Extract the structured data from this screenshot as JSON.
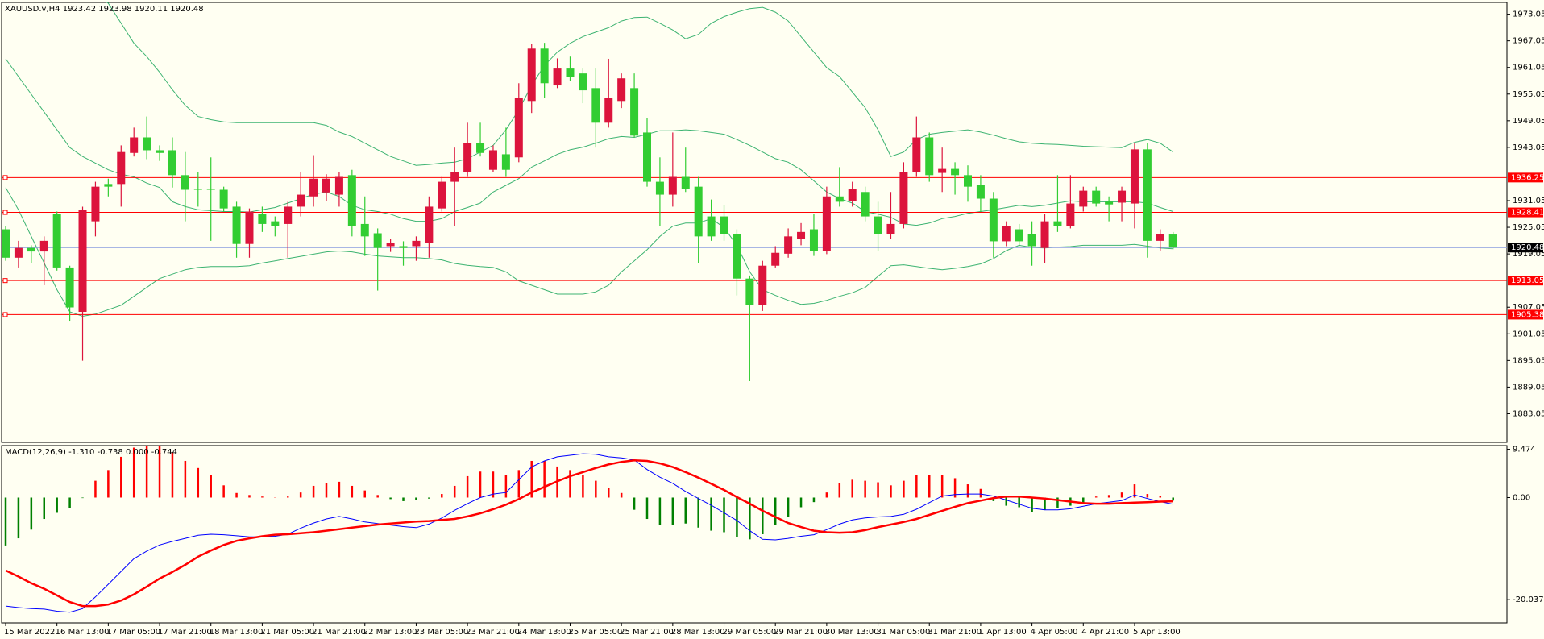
{
  "chart_data": [
    {
      "type": "candlestick",
      "title": "XAUUSD.v,H4  1923.42 1923.98 1920.11 1920.48",
      "categories": [
        "15 Mar 2022",
        null,
        null,
        null,
        "16 Mar 13:00",
        null,
        null,
        null,
        "17 Mar 05:00",
        null,
        null,
        null,
        "17 Mar 21:00",
        null,
        null,
        null,
        "18 Mar 13:00",
        null,
        null,
        null,
        "21 Mar 05:00",
        null,
        null,
        null,
        "21 Mar 21:00",
        null,
        null,
        null,
        "22 Mar 13:00",
        null,
        null,
        null,
        "23 Mar 05:00",
        null,
        null,
        null,
        "23 Mar 21:00",
        null,
        null,
        null,
        "24 Mar 13:00",
        null,
        null,
        null,
        "25 Mar 05:00",
        null,
        null,
        null,
        "25 Mar 21:00",
        null,
        null,
        null,
        "28 Mar 13:00",
        null,
        null,
        null,
        "29 Mar 05:00",
        null,
        null,
        null,
        "29 Mar 21:00",
        null,
        null,
        null,
        "30 Mar 13:00",
        null,
        null,
        null,
        "31 Mar 05:00",
        null,
        null,
        null,
        "31 Mar 21:00",
        null,
        null,
        null,
        "1 Apr 13:00",
        null,
        null,
        null,
        "4 Apr 05:00",
        null,
        null,
        null,
        "4 Apr 21:00",
        null,
        null,
        null,
        "5 Apr 13:00",
        null,
        null,
        null
      ],
      "open": [
        1924.6,
        1918.2,
        1920.4,
        1919.6,
        1928,
        1916,
        1906,
        1926.4,
        1934.8,
        1934.8,
        1941.8,
        1945.3,
        1942.4,
        1942.4,
        1936.8,
        1933.7,
        1933.7,
        1933.5,
        1929.7,
        1921.3,
        1928,
        1926.4,
        1925.8,
        1929.7,
        1932,
        1932.9,
        1932.4,
        1936.8,
        1925.8,
        1923.7,
        1920.8,
        1920.8,
        1920.8,
        1921.5,
        1929.3,
        1935.3,
        1937.5,
        1944,
        1938,
        1941.5,
        1940.8,
        1953.5,
        1965.3,
        1957,
        1960.8,
        1959.7,
        1956.4,
        1948.6,
        1953.5,
        1956.4,
        1946.4,
        1935.3,
        1932.4,
        1936.4,
        1934.2,
        1927.5,
        1927.5,
        1923.5,
        1913.5,
        1907.5,
        1916.4,
        1919.1,
        1922.5,
        1924.6,
        1919.7,
        1932,
        1931,
        1933,
        1927.5,
        1923.5,
        1925.8,
        1937.5,
        1945.3,
        1937.3,
        1938.2,
        1936.8,
        1934.5,
        1931.5,
        1921.9,
        1924.6,
        1923.5,
        1920.4,
        1926.4,
        1925.3,
        1929.7,
        1933.3,
        1930.8,
        1930.6,
        1930.4,
        1942.6,
        1922,
        1923.42
      ],
      "high": [
        1925.3,
        1922,
        1921,
        1923,
        1928.6,
        1916.4,
        1929.7,
        1935.3,
        1936,
        1943.5,
        1947.5,
        1950,
        1943.5,
        1945.3,
        1942,
        1937.5,
        1940.8,
        1934.2,
        1930.8,
        1929.3,
        1929.7,
        1927.5,
        1930.8,
        1937.5,
        1941.3,
        1937,
        1937.5,
        1938,
        1932,
        1924.8,
        1922.5,
        1921.9,
        1923,
        1932,
        1936.4,
        1943,
        1948.6,
        1948.6,
        1943.5,
        1947.5,
        1957.5,
        1966.4,
        1966.6,
        1963.1,
        1963.5,
        1960.8,
        1960.8,
        1963,
        1959.7,
        1959.7,
        1949.7,
        1940.8,
        1946.4,
        1943,
        1936.4,
        1931.3,
        1930,
        1924.6,
        1914.2,
        1917.5,
        1920.8,
        1924.8,
        1926,
        1928,
        1934.2,
        1938.6,
        1935.3,
        1934.2,
        1930.8,
        1933,
        1939.7,
        1950,
        1946.4,
        1943,
        1939.7,
        1939,
        1936.8,
        1933,
        1926.4,
        1925.8,
        1926.4,
        1928,
        1936.8,
        1936.8,
        1934.2,
        1934.2,
        1932,
        1934.2,
        1944,
        1944,
        1924.6,
        1923.98
      ],
      "low": [
        1917.5,
        1916,
        1917,
        1912,
        1915.3,
        1904,
        1895,
        1923,
        1932,
        1929.7,
        1941,
        1940.4,
        1940,
        1934,
        1926.4,
        1929.7,
        1922,
        1928.6,
        1918.2,
        1918.2,
        1924,
        1923,
        1918.2,
        1927.5,
        1929.7,
        1931,
        1929.7,
        1923,
        1918.6,
        1910.8,
        1919.5,
        1916.4,
        1917.5,
        1918.2,
        1928.6,
        1925.3,
        1936.4,
        1941,
        1937.5,
        1936.4,
        1939.7,
        1950.8,
        1954.2,
        1956.4,
        1958,
        1953,
        1943,
        1947.5,
        1951.9,
        1945.3,
        1934.2,
        1925.3,
        1929.7,
        1933,
        1916.9,
        1922,
        1922,
        1909.7,
        1890.4,
        1906.2,
        1916,
        1918.2,
        1921,
        1918.6,
        1919,
        1929.7,
        1929.7,
        1926.4,
        1919.7,
        1922.5,
        1924.8,
        1936.4,
        1935.3,
        1933,
        1932.4,
        1930.8,
        1928.6,
        1918.2,
        1920.8,
        1920.8,
        1916.4,
        1916.9,
        1924,
        1924.8,
        1928.6,
        1929.7,
        1926.4,
        1926.4,
        1924.8,
        1918.2,
        1919.7,
        1920.11
      ],
      "close": [
        1918.2,
        1920.4,
        1919.6,
        1922,
        1916,
        1907,
        1929,
        1934.2,
        1934.2,
        1942,
        1945.3,
        1942.4,
        1941.8,
        1936.8,
        1933.5,
        1933.5,
        1933.5,
        1929.3,
        1921.3,
        1928.6,
        1925.8,
        1925.3,
        1929.7,
        1932.4,
        1936,
        1936,
        1936.4,
        1925.3,
        1923,
        1920.4,
        1921.5,
        1920.4,
        1922,
        1929.7,
        1935.3,
        1937.5,
        1944,
        1941.8,
        1942.4,
        1938,
        1954.2,
        1965.3,
        1957.5,
        1960.8,
        1959,
        1955.9,
        1948.6,
        1954.2,
        1958.6,
        1945.7,
        1935.3,
        1932.4,
        1936.4,
        1933.7,
        1923,
        1923,
        1923.5,
        1913.5,
        1907.5,
        1916.4,
        1919.3,
        1923,
        1924,
        1919.7,
        1932,
        1930.8,
        1933.7,
        1927.5,
        1923.5,
        1925.8,
        1937.5,
        1945.3,
        1936.8,
        1938.2,
        1936.8,
        1934.2,
        1931.5,
        1921.9,
        1925.3,
        1921.9,
        1920.8,
        1926.4,
        1925.3,
        1930.4,
        1933.3,
        1930.4,
        1930.2,
        1933.3,
        1942.6,
        1922,
        1923.5,
        1920.48
      ],
      "up_color": "#dc143c",
      "down_color": "#32cd32",
      "bands": {
        "color": "#3cb371",
        "upper": [
          1998,
          1995,
          1992,
          1989,
          1986,
          1983,
          1980,
          1977.5,
          1975.5,
          1971,
          1966.5,
          1963.5,
          1960,
          1956,
          1952.5,
          1950,
          1949.3,
          1948.8,
          1948.6,
          1948.6,
          1948.6,
          1948.6,
          1948.6,
          1948.6,
          1948.6,
          1948,
          1946.5,
          1945.5,
          1944,
          1942.5,
          1941,
          1940,
          1939,
          1939.2,
          1939.5,
          1939.7,
          1940.5,
          1942,
          1943.5,
          1947,
          1951.5,
          1957,
          1961.5,
          1964.5,
          1966.5,
          1968,
          1969,
          1970,
          1971.5,
          1972.3,
          1972.4,
          1971,
          1969.5,
          1967.5,
          1968.5,
          1971,
          1972.5,
          1973.5,
          1974.3,
          1974.6,
          1973.5,
          1971.5,
          1968,
          1964.5,
          1961,
          1959,
          1955.5,
          1952,
          1947,
          1941,
          1942,
          1944.8,
          1946,
          1946.4,
          1946.7,
          1947,
          1946.5,
          1945.8,
          1945,
          1944.3,
          1944,
          1943.8,
          1943.7,
          1943.5,
          1943.3,
          1943.2,
          1943.1,
          1943,
          1944.2,
          1944.8,
          1944,
          1942
        ],
        "middle": [
          1963,
          1959,
          1955,
          1951,
          1947,
          1943,
          1941,
          1939.5,
          1938,
          1937,
          1936.4,
          1935,
          1934,
          1930.8,
          1929.7,
          1929,
          1928.8,
          1928.6,
          1928.6,
          1928.5,
          1929,
          1929.5,
          1930.5,
          1931.5,
          1932.5,
          1933,
          1932,
          1930,
          1929,
          1928.6,
          1928,
          1927,
          1926.4,
          1926.4,
          1927,
          1928.6,
          1929.5,
          1930.5,
          1933,
          1934.5,
          1936,
          1938.6,
          1940,
          1941.5,
          1942.5,
          1943.1,
          1944,
          1945,
          1945.5,
          1945.3,
          1946,
          1946.8,
          1946.8,
          1947,
          1946.8,
          1946.4,
          1946,
          1944.8,
          1943.5,
          1942,
          1940.5,
          1939.7,
          1938,
          1935.5,
          1933,
          1931.5,
          1930.5,
          1928.6,
          1928,
          1927.3,
          1925.8,
          1925.5,
          1926,
          1927,
          1927.5,
          1928.2,
          1928.6,
          1929,
          1929.5,
          1930,
          1929.7,
          1930,
          1930.5,
          1931,
          1930.8,
          1930.8,
          1930.8,
          1930.8,
          1930.8,
          1930.5,
          1929.5,
          1928.6
        ],
        "lower": [
          1934,
          1929,
          1923,
          1917,
          1911,
          1906,
          1905,
          1905.5,
          1906.5,
          1907.5,
          1909.5,
          1911.5,
          1913.5,
          1914.5,
          1915.5,
          1916,
          1916.2,
          1916.2,
          1916.2,
          1916.4,
          1917,
          1917.5,
          1918,
          1918.5,
          1919,
          1919.5,
          1919.7,
          1919.5,
          1919,
          1918.6,
          1918.4,
          1918.2,
          1918.2,
          1918,
          1917.7,
          1916.9,
          1916.5,
          1916.2,
          1916,
          1915,
          1913,
          1912,
          1911,
          1910,
          1910,
          1910,
          1910.5,
          1912,
          1915,
          1917.5,
          1920,
          1923,
          1925.3,
          1926,
          1926,
          1927,
          1925,
          1921,
          1915,
          1911,
          1909.7,
          1908.6,
          1907.7,
          1907.9,
          1908.6,
          1909.5,
          1910.3,
          1911.5,
          1914,
          1916.4,
          1916.6,
          1916.2,
          1915.8,
          1915.5,
          1915.8,
          1916.2,
          1916.8,
          1918,
          1919.8,
          1921,
          1920.5,
          1920.4,
          1920.6,
          1920.7,
          1921,
          1921,
          1921,
          1921,
          1921.2,
          1920.8,
          1920.4,
          1920.2
        ]
      },
      "levels": [
        1936.25,
        1928.41,
        1913.05,
        1905.38
      ],
      "level_color": "#ff0000",
      "last_price": 1920.48,
      "last_price_color": "#8c9ee0",
      "ylim": [
        1876.6,
        1975.7
      ],
      "yticks": [
        1973.05,
        1967.05,
        1961.05,
        1955.05,
        1949.05,
        1943.05,
        1931.05,
        1925.05,
        1919.05,
        1907.05,
        1901.05,
        1895.05,
        1889.05,
        1883.05
      ]
    },
    {
      "type": "macd",
      "title": "MACD(12,26,9) -1.310 -0.738 0.000 -0.744",
      "histogram": [
        -9.4,
        -8,
        -6.3,
        -4.2,
        -3,
        -2.1,
        -0.1,
        3.3,
        5.4,
        8,
        9.8,
        10.3,
        10.1,
        8.9,
        7.2,
        5.8,
        4.4,
        2.4,
        0.9,
        0.5,
        0.2,
        0.05,
        0.2,
        1,
        2.3,
        2.8,
        3.1,
        2.3,
        1.4,
        0.5,
        -0.3,
        -0.7,
        -0.5,
        -0.2,
        0.7,
        2.3,
        4.2,
        5.1,
        5.1,
        4.5,
        5.4,
        7.2,
        7.2,
        6.1,
        5.4,
        4.4,
        3.3,
        1.9,
        0.9,
        -2.4,
        -4.2,
        -5.4,
        -5.4,
        -5.1,
        -5.9,
        -6.5,
        -6.8,
        -7.7,
        -8.2,
        -7.2,
        -5.4,
        -3.8,
        -1.9,
        -0.9,
        1,
        2.8,
        3.5,
        3.3,
        3,
        2.4,
        3.3,
        4.5,
        4.5,
        4.4,
        3.8,
        2.6,
        1.7,
        -0.7,
        -1.6,
        -1.9,
        -2.8,
        -2.4,
        -2.1,
        -1.6,
        -1,
        0.2,
        0.5,
        1,
        2.6,
        0.7,
        0.3,
        -0.6
      ],
      "macd": [
        -21.3,
        -21.6,
        -21.8,
        -21.9,
        -22.3,
        -22.5,
        -21.8,
        -19.5,
        -17,
        -14.5,
        -12,
        -10.5,
        -9.3,
        -8.6,
        -8,
        -7.4,
        -7.2,
        -7.3,
        -7.5,
        -7.7,
        -7.7,
        -7.6,
        -7.2,
        -6,
        -5,
        -4.2,
        -3.7,
        -4.2,
        -4.8,
        -5.1,
        -5.4,
        -5.7,
        -5.9,
        -5.2,
        -4,
        -2.5,
        -1.2,
        0,
        0.7,
        1,
        3.5,
        6,
        7.2,
        8,
        8.3,
        8.6,
        8.5,
        8,
        7.8,
        7.4,
        5.5,
        4,
        2.8,
        1.2,
        -0.2,
        -1.5,
        -3,
        -4.5,
        -6.5,
        -8.2,
        -8.3,
        -8,
        -7.6,
        -7.3,
        -6.3,
        -5.2,
        -4.4,
        -4,
        -3.8,
        -3.7,
        -3.3,
        -2.3,
        -1,
        0.3,
        0.6,
        0.7,
        0.7,
        0.3,
        -0.5,
        -1.3,
        -2.1,
        -2.4,
        -2.4,
        -2.2,
        -1.7,
        -1.2,
        -0.9,
        -0.6,
        0.5,
        -0.2,
        -0.8,
        -1.31
      ],
      "signal": [
        -14.3,
        -15.5,
        -16.8,
        -17.9,
        -19.2,
        -20.5,
        -21.3,
        -21.3,
        -21,
        -20.2,
        -19,
        -17.5,
        -15.9,
        -14.6,
        -13.2,
        -11.6,
        -10.4,
        -9.3,
        -8.5,
        -8,
        -7.6,
        -7.3,
        -7.2,
        -7,
        -6.8,
        -6.5,
        -6.2,
        -5.9,
        -5.6,
        -5.3,
        -5.1,
        -4.9,
        -4.7,
        -4.6,
        -4.4,
        -4.2,
        -3.7,
        -3.1,
        -2.3,
        -1.4,
        -0.3,
        1,
        2.1,
        3.2,
        4.2,
        5,
        5.8,
        6.5,
        7,
        7.3,
        7.2,
        6.7,
        6,
        5,
        3.9,
        2.7,
        1.5,
        0.1,
        -1.2,
        -2.6,
        -3.8,
        -5,
        -5.8,
        -6.5,
        -6.8,
        -6.9,
        -6.8,
        -6.4,
        -5.8,
        -5.3,
        -4.8,
        -4.2,
        -3.4,
        -2.6,
        -1.8,
        -1.1,
        -0.6,
        -0.1,
        0.2,
        0.2,
        0,
        -0.2,
        -0.5,
        -0.8,
        -1.1,
        -1.2,
        -1.2,
        -1.1,
        -1,
        -0.9,
        -0.8,
        -0.738
      ],
      "macd_color": "#0000ff",
      "signal_color": "#ff0000",
      "hist_up_color": "#ff0000",
      "hist_down_color": "#008000",
      "ylim": [
        -24.6,
        10.2
      ],
      "yticks": [
        9.474,
        {
          "value": 0,
          "label": "0.00"
        },
        -20.037
      ]
    }
  ]
}
